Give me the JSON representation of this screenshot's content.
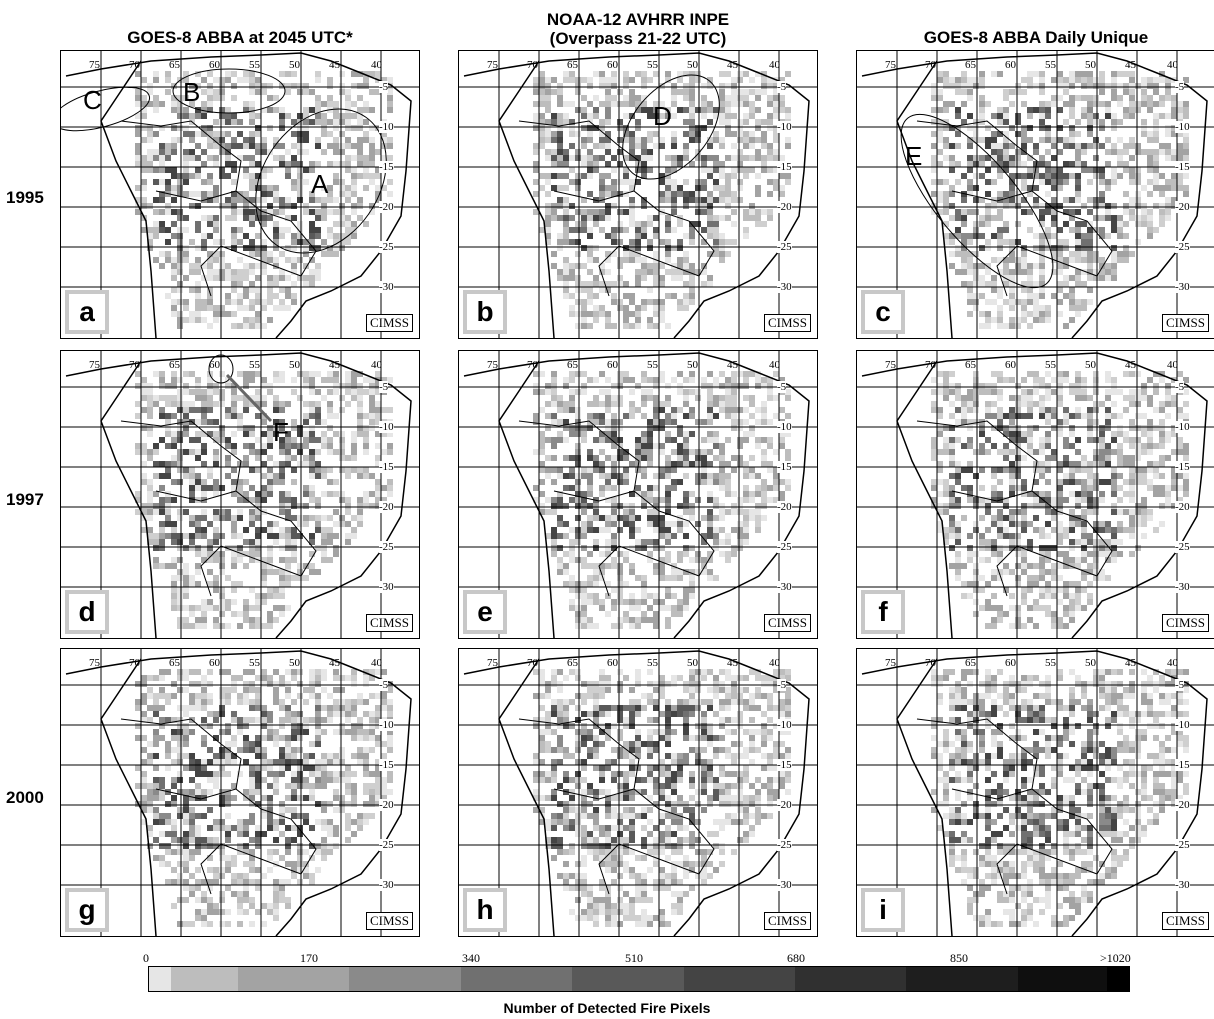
{
  "columns": [
    {
      "title_line1": "GOES-8 ABBA at 2045 UTC*",
      "title_line2": ""
    },
    {
      "title_line1": "NOAA-12 AVHRR INPE",
      "title_line2": "(Overpass 21-22 UTC)"
    },
    {
      "title_line1": "GOES-8 ABBA Daily Unique",
      "title_line2": ""
    }
  ],
  "rows": [
    "1995",
    "1997",
    "2000"
  ],
  "panels": [
    {
      "label": "a",
      "regions": [
        {
          "text": "C"
        },
        {
          "text": "B"
        },
        {
          "text": "A"
        }
      ]
    },
    {
      "label": "b",
      "regions": [
        {
          "text": "D"
        }
      ]
    },
    {
      "label": "c",
      "regions": [
        {
          "text": "E"
        }
      ]
    },
    {
      "label": "d",
      "regions": [
        {
          "text": "F"
        }
      ]
    },
    {
      "label": "e",
      "regions": []
    },
    {
      "label": "f",
      "regions": []
    },
    {
      "label": "g",
      "regions": []
    },
    {
      "label": "h",
      "regions": []
    },
    {
      "label": "i",
      "regions": []
    }
  ],
  "credit": "CIMSS",
  "lon_labels": [
    "75",
    "70",
    "65",
    "60",
    "55",
    "50",
    "45",
    "40"
  ],
  "lat_labels": [
    "-5",
    "-10",
    "-15",
    "-20",
    "-25",
    "-30"
  ],
  "colorbar": {
    "ticks": [
      "0",
      "170",
      "340",
      "510",
      "680",
      "850",
      ">1020"
    ],
    "label": "Number of Detected Fire Pixels",
    "colors": [
      "#e6e6e6",
      "#bdbdbd",
      "#a3a3a3",
      "#8a8a8a",
      "#707070",
      "#595959",
      "#444444",
      "#303030",
      "#1e1e1e",
      "#0f0f0f",
      "#000000"
    ]
  }
}
